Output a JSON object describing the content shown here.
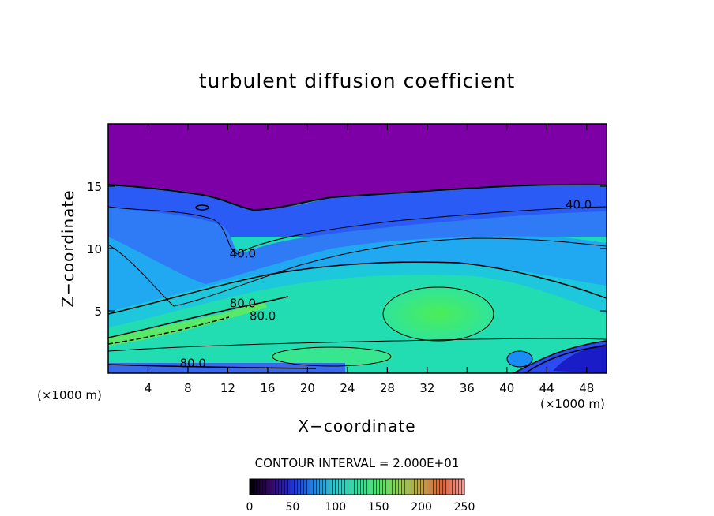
{
  "chart_data": {
    "type": "heatmap",
    "title": "turbulent diffusion coefficient",
    "xlabel": "X−coordinate",
    "ylabel": "Z−coordinate",
    "x_unit_left": "(×1000 m)",
    "x_unit_right": "(×1000 m)",
    "xlim": [
      0,
      50
    ],
    "ylim": [
      0,
      20
    ],
    "x_ticks": [
      4,
      8,
      12,
      16,
      20,
      24,
      28,
      32,
      36,
      40,
      44,
      48
    ],
    "y_ticks": [
      5,
      10,
      15
    ],
    "contour_interval_text": "CONTOUR INTERVAL = 2.000E+01",
    "contour_labels": [
      {
        "text": "40.0",
        "x": 47.2,
        "z": 13.5
      },
      {
        "text": "40.0",
        "x": 13.5,
        "z": 9.6
      },
      {
        "text": "80.0",
        "x": 13.5,
        "z": 5.6
      },
      {
        "text": "80.0",
        "x": 15.5,
        "z": 4.6
      },
      {
        "text": "80.0",
        "x": 8.5,
        "z": 0.8
      }
    ],
    "colorbar": {
      "min": 0,
      "max": 250,
      "ticks": [
        0,
        50,
        100,
        150,
        200,
        250
      ]
    }
  }
}
